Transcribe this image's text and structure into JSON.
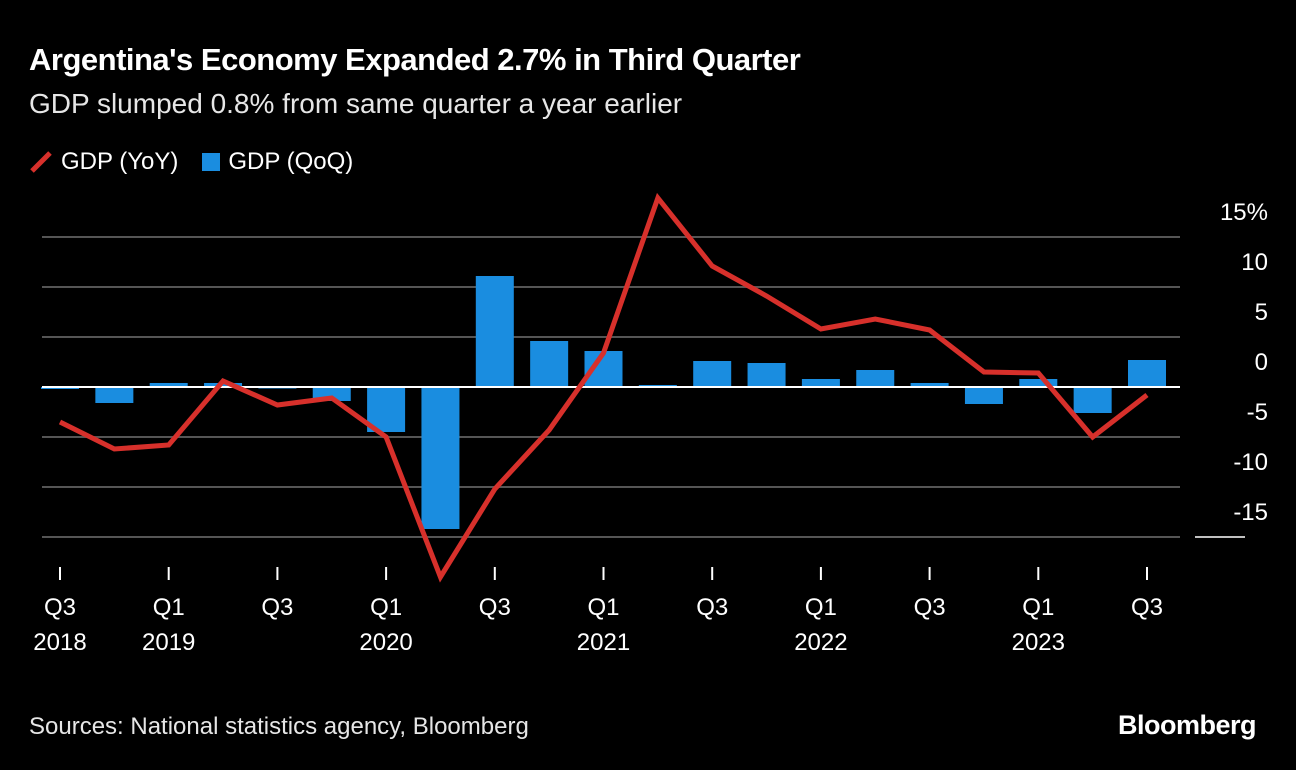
{
  "title": "Argentina's Economy Expanded 2.7% in Third Quarter",
  "subtitle": "GDP slumped 0.8% from same quarter a year earlier",
  "source": "Sources: National statistics agency, Bloomberg",
  "logo": "Bloomberg",
  "colors": {
    "yoy": "#d7302b",
    "qoq": "#1a8de0",
    "background": "#000000"
  },
  "chart_data": {
    "type": "bar+line",
    "categories": [
      "Q3 2018",
      "Q4 2018",
      "Q1 2019",
      "Q2 2019",
      "Q3 2019",
      "Q4 2019",
      "Q1 2020",
      "Q2 2020",
      "Q3 2020",
      "Q4 2020",
      "Q1 2021",
      "Q2 2021",
      "Q3 2021",
      "Q4 2021",
      "Q1 2022",
      "Q2 2022",
      "Q3 2022",
      "Q4 2022",
      "Q1 2023",
      "Q2 2023",
      "Q3 2023"
    ],
    "series": [
      {
        "name": "GDP (YoY)",
        "kind": "line",
        "values": [
          -3.5,
          -6.2,
          -5.8,
          0.6,
          -1.8,
          -1.1,
          -5.0,
          -19.0,
          -10.2,
          -4.3,
          3.4,
          18.9,
          12.1,
          9.1,
          5.8,
          6.8,
          5.7,
          1.5,
          1.4,
          -5.0,
          -0.8
        ]
      },
      {
        "name": "GDP (QoQ)",
        "kind": "bar",
        "values": [
          -0.2,
          -1.6,
          0.4,
          0.4,
          -0.1,
          -1.4,
          -4.5,
          -14.2,
          11.1,
          4.6,
          3.6,
          0.2,
          2.6,
          2.4,
          0.8,
          1.7,
          0.4,
          -1.7,
          0.8,
          -2.6,
          2.7
        ]
      }
    ],
    "yticks": [
      {
        "v": 15,
        "label": "15%"
      },
      {
        "v": 10,
        "label": "10"
      },
      {
        "v": 5,
        "label": "5"
      },
      {
        "v": 0,
        "label": "0"
      },
      {
        "v": -5,
        "label": "-5"
      },
      {
        "v": -10,
        "label": "-10"
      },
      {
        "v": -15,
        "label": "-15"
      }
    ],
    "ylim": [
      -19,
      19
    ],
    "xticks": [
      {
        "i": 0,
        "q": "Q3",
        "y": "2018"
      },
      {
        "i": 2,
        "q": "Q1",
        "y": "2019"
      },
      {
        "i": 4,
        "q": "Q3",
        "y": ""
      },
      {
        "i": 6,
        "q": "Q1",
        "y": "2020"
      },
      {
        "i": 8,
        "q": "Q3",
        "y": ""
      },
      {
        "i": 10,
        "q": "Q1",
        "y": "2021"
      },
      {
        "i": 12,
        "q": "Q3",
        "y": ""
      },
      {
        "i": 14,
        "q": "Q1",
        "y": "2022"
      },
      {
        "i": 16,
        "q": "Q3",
        "y": ""
      },
      {
        "i": 18,
        "q": "Q1",
        "y": "2023"
      },
      {
        "i": 20,
        "q": "Q3",
        "y": ""
      }
    ],
    "grid": true,
    "legend": "top-left"
  }
}
